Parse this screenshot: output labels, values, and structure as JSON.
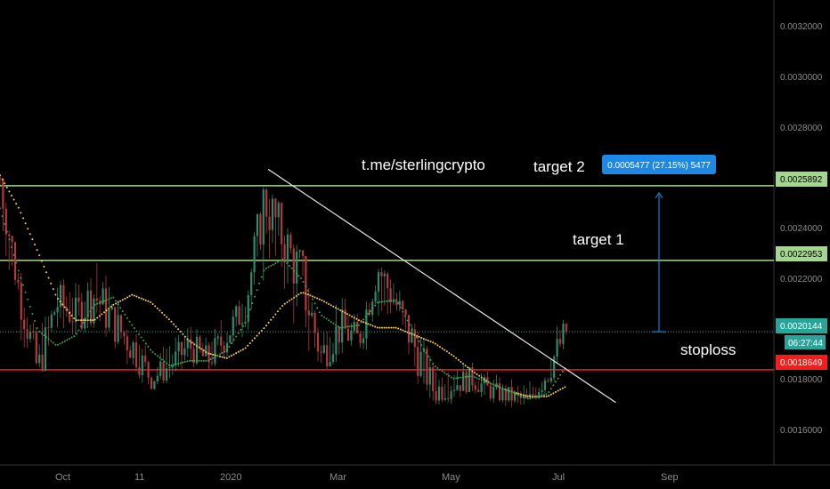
{
  "chart_data": {
    "type": "candlestick",
    "title": "",
    "xlabel": "",
    "ylabel": "",
    "ylim": [
      0.00149,
      0.00332
    ],
    "y_ticks": [
      "0.0032000",
      "0.0030000",
      "0.0028000",
      "0.0024000",
      "0.0022000",
      "0.0018000",
      "0.0016000"
    ],
    "x_ticks": [
      "Oct",
      "11",
      "2020",
      "Mar",
      "May",
      "Jul",
      "Sep"
    ],
    "price_levels": [
      {
        "name": "target 2 line",
        "value": 0.0025892,
        "label": "0.0025892",
        "color": "#a5d68f"
      },
      {
        "name": "target 1 line",
        "value": 0.0022953,
        "label": "0.0022953",
        "color": "#a5d68f"
      },
      {
        "name": "current price",
        "value": 0.0020144,
        "label": "0.0020144",
        "color": "#26a69a"
      },
      {
        "name": "stoploss line",
        "value": 0.0018649,
        "label": "0.0018649",
        "color": "#ff1a1a"
      }
    ],
    "countdown": "06:27:44",
    "annotations": {
      "link": "t.me/sterlingcrypto",
      "target_2": "target 2",
      "target_1": "target 1",
      "stoploss": "stoploss"
    },
    "measure": {
      "label": "0.0005477 (27.15%) 5477",
      "from": 0.0020144,
      "to": 0.0025892
    },
    "trendline": {
      "from": [
        0.3465,
        0.002654
      ],
      "to": [
        0.7957,
        0.001736
      ]
    },
    "series": [
      {
        "name": "candles",
        "x": [
          0.0,
          0.0244,
          0.0488,
          0.0732,
          0.0976,
          0.122,
          0.1464,
          0.1708,
          0.1952,
          0.2196,
          0.244,
          0.2684,
          0.2928,
          0.3172,
          0.3416,
          0.366,
          0.3904,
          0.4148,
          0.4392,
          0.4636,
          0.488,
          0.5124,
          0.5368,
          0.5612,
          0.5856,
          0.61,
          0.6344,
          0.6588,
          0.6832,
          0.7076,
          0.732
        ],
        "close": [
          0.00262,
          0.00218,
          0.00186,
          0.00213,
          0.00208,
          0.00216,
          0.00205,
          0.00196,
          0.00183,
          0.00188,
          0.00196,
          0.0019,
          0.002,
          0.00212,
          0.00254,
          0.00238,
          0.00222,
          0.00192,
          0.00203,
          0.00198,
          0.00227,
          0.00212,
          0.00195,
          0.00178,
          0.00181,
          0.00183,
          0.00178,
          0.00176,
          0.00174,
          0.00186,
          0.00202
        ],
        "high": [
          0.00266,
          0.0023,
          0.0021,
          0.0023,
          0.00225,
          0.00244,
          0.00222,
          0.00212,
          0.00198,
          0.00202,
          0.00208,
          0.00206,
          0.00214,
          0.00224,
          0.00262,
          0.00252,
          0.00232,
          0.00212,
          0.0022,
          0.00212,
          0.00232,
          0.00226,
          0.0021,
          0.00194,
          0.00192,
          0.00193,
          0.00188,
          0.00186,
          0.00184,
          0.00204,
          0.0021
        ],
        "low": [
          0.00226,
          0.00194,
          0.0018,
          0.00194,
          0.00196,
          0.00202,
          0.0019,
          0.0018,
          0.00178,
          0.0018,
          0.00184,
          0.00182,
          0.00188,
          0.00196,
          0.00212,
          0.0021,
          0.00178,
          0.00182,
          0.00188,
          0.00186,
          0.00198,
          0.00196,
          0.00172,
          0.0017,
          0.00172,
          0.00174,
          0.00172,
          0.0017,
          0.0017,
          0.00176,
          0.00184
        ]
      },
      {
        "name": "fast moving average",
        "color": "#3ea34b",
        "values": [
          0.0025,
          0.00225,
          0.00202,
          0.00196,
          0.002,
          0.00212,
          0.00215,
          0.00204,
          0.00194,
          0.00188,
          0.0019,
          0.0019,
          0.00194,
          0.00205,
          0.00226,
          0.0023,
          0.00222,
          0.00208,
          0.00203,
          0.00204,
          0.00213,
          0.00214,
          0.002,
          0.00188,
          0.00183,
          0.00184,
          0.00181,
          0.00178,
          0.00175,
          0.00177,
          0.00188
        ]
      },
      {
        "name": "slow moving average",
        "color": "#ffd060",
        "values": [
          0.00263,
          0.0025,
          0.00233,
          0.00215,
          0.00206,
          0.00206,
          0.00212,
          0.00216,
          0.00213,
          0.00206,
          0.00198,
          0.00193,
          0.00191,
          0.00195,
          0.00203,
          0.00212,
          0.00217,
          0.00214,
          0.0021,
          0.00206,
          0.00203,
          0.00203,
          0.002,
          0.00197,
          0.00192,
          0.00186,
          0.00181,
          0.00178,
          0.00176,
          0.00176,
          0.0018
        ]
      }
    ]
  }
}
